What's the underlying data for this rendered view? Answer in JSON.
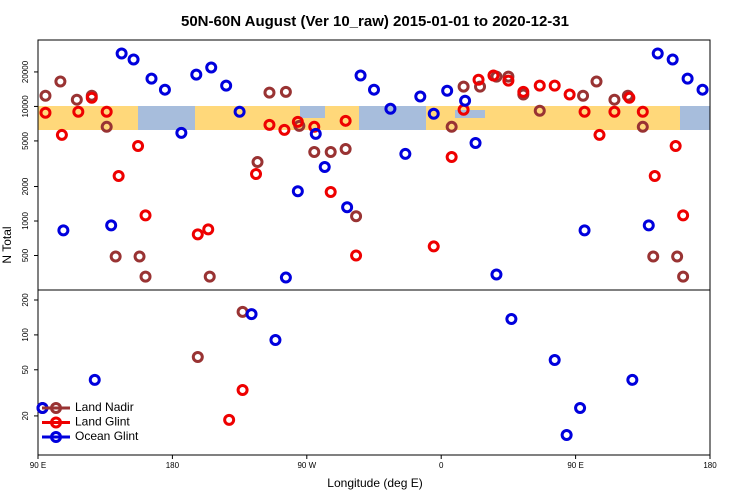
{
  "chart_data": [
    {
      "type": "scatter",
      "title": "50N-60N August (Ver 10_raw)   2015-01-01 to 2020-12-31",
      "ylabel": "N Total",
      "xlim": [
        90,
        540
      ],
      "ylim": [
        250,
        38000
      ],
      "log": true,
      "yticks": [
        500,
        1000,
        2000,
        5000,
        10000,
        20000
      ],
      "series": [
        {
          "color": "#993333",
          "x": [
            95,
            105,
            116,
            126,
            136,
            142,
            158,
            162,
            205,
            237,
            245,
            256,
            265,
            275,
            286,
            296,
            303,
            367,
            375,
            386,
            397,
            405,
            415,
            426,
            455,
            464,
            476,
            485,
            495,
            502,
            518,
            522
          ],
          "values": [
            12400,
            16500,
            11450,
            12400,
            6640,
            490,
            490,
            327,
            327,
            3270,
            13200,
            13400,
            6770,
            4000,
            4000,
            4250,
            1100,
            6640,
            14900,
            14900,
            18200,
            18200,
            12700,
            9170,
            12400,
            16500,
            11450,
            12400,
            6640,
            490,
            490,
            327
          ]
        },
        {
          "color": "#ee0000",
          "x": [
            95,
            106,
            117,
            126,
            136,
            144,
            157,
            162,
            197,
            204,
            236,
            245,
            255,
            264,
            275,
            286,
            296,
            303,
            355,
            367,
            375,
            385,
            395,
            405,
            415,
            426,
            436,
            446,
            456,
            466,
            476,
            486,
            495,
            503,
            517,
            522
          ],
          "values": [
            8800,
            5640,
            8980,
            11900,
            8980,
            2470,
            4520,
            1120,
            765,
            846,
            2570,
            6910,
            6250,
            7340,
            6640,
            1790,
            7490,
            500,
            600,
            3620,
            9350,
            17100,
            18600,
            16800,
            13400,
            15200,
            15200,
            12700,
            8980,
            5640,
            8980,
            11900,
            8980,
            2470,
            4520,
            1120
          ]
        },
        {
          "color": "#0000dd",
          "x": [
            107,
            139,
            146,
            154,
            166,
            175,
            186,
            196,
            206,
            216,
            225,
            256,
            264,
            276,
            282,
            297,
            306,
            315,
            326,
            336,
            346,
            355,
            364,
            376,
            383,
            397,
            456,
            499,
            505,
            515,
            525,
            535
          ],
          "values": [
            829,
            917,
            29000,
            25700,
            17500,
            14000,
            5880,
            18950,
            21850,
            15200,
            8980,
            321,
            1820,
            5760,
            2960,
            1320,
            18600,
            14000,
            9540,
            3850,
            12200,
            8630,
            13700,
            11200,
            4800,
            341,
            829,
            917,
            29000,
            25700,
            17500,
            14000
          ]
        }
      ]
    },
    {
      "type": "scatter",
      "xlabel": "Longitude (deg E)",
      "xlim": [
        90,
        540
      ],
      "xticks": [
        {
          "value": 90,
          "label": "90 E"
        },
        180,
        {
          "value": 270,
          "label": "90 W"
        },
        {
          "value": 360,
          "label": "0"
        },
        {
          "value": 450,
          "label": "90 E"
        },
        {
          "value": 540,
          "label": "180"
        }
      ],
      "ylim": [
        9.2,
        244
      ],
      "log": true,
      "yticks": [
        20,
        50,
        100,
        200
      ],
      "legend": "lower left",
      "series": [
        {
          "name": "Land Nadir",
          "color": "#993333",
          "x": [
            93,
            197,
            227
          ],
          "values": [
            23.4,
            64.5,
            158
          ]
        },
        {
          "name": "Land Glint",
          "color": "#ee0000",
          "x": [
            218,
            227
          ],
          "values": [
            18.5,
            33.5
          ]
        },
        {
          "name": "Ocean Glint",
          "color": "#0000dd",
          "x": [
            93,
            128,
            233,
            249,
            407,
            436,
            444,
            453,
            488
          ],
          "values": [
            23.4,
            40.9,
            151,
            90.4,
            137,
            60.8,
            13.7,
            23.4,
            40.9
          ]
        }
      ]
    }
  ]
}
